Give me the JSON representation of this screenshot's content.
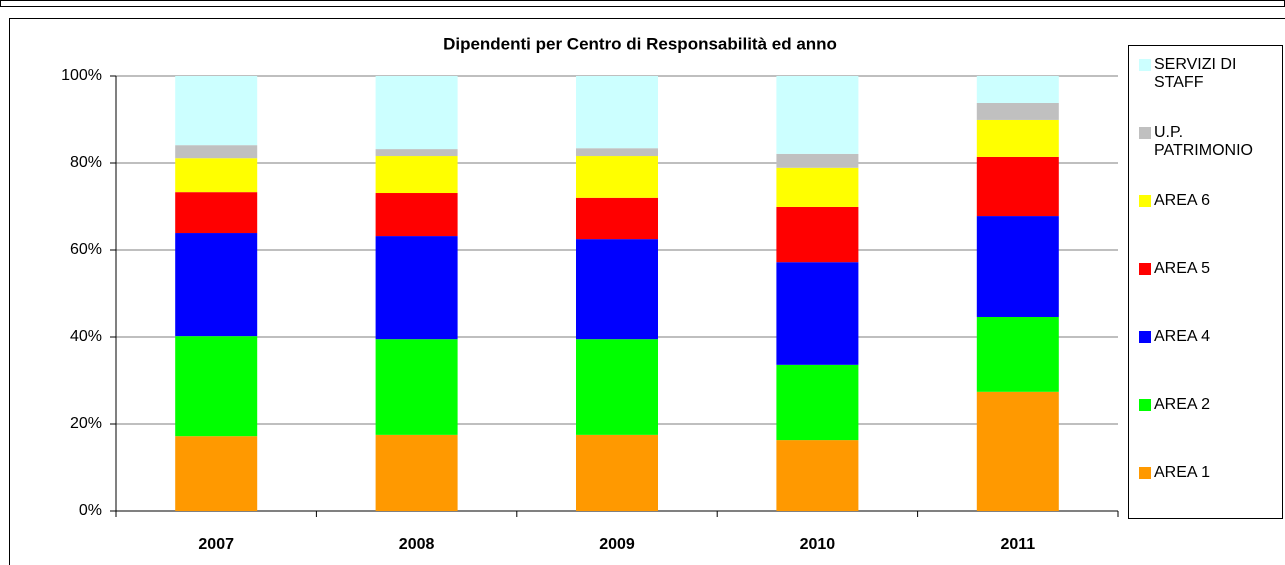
{
  "chart_data": {
    "type": "stacked_bar",
    "title": "Dipendenti per Centro di Responsabilità ed anno",
    "categories": [
      "2007",
      "2008",
      "2009",
      "2010",
      "2011"
    ],
    "series": [
      {
        "name": "AREA 1",
        "color": "#ff9900",
        "values": [
          17.2,
          17.5,
          17.5,
          16.3,
          27.4
        ]
      },
      {
        "name": "AREA 2",
        "color": "#00ff00",
        "values": [
          23.0,
          22.0,
          22.0,
          17.3,
          17.2
        ]
      },
      {
        "name": "AREA 4",
        "color": "#0000ff",
        "values": [
          23.7,
          23.7,
          23.0,
          23.6,
          23.2
        ]
      },
      {
        "name": "AREA 5",
        "color": "#ff0000",
        "values": [
          9.4,
          9.9,
          9.5,
          12.7,
          13.6
        ]
      },
      {
        "name": "AREA 6",
        "color": "#ffff00",
        "values": [
          7.8,
          8.5,
          9.6,
          9.0,
          8.5
        ]
      },
      {
        "name": "U.P. PATRIMONIO",
        "color": "#c0c0c0",
        "values": [
          3.0,
          1.6,
          1.8,
          3.2,
          3.9
        ]
      },
      {
        "name": "SERVIZI DI STAFF",
        "color": "#ccffff",
        "values": [
          15.9,
          16.8,
          16.6,
          17.9,
          6.2
        ]
      }
    ],
    "ylim": [
      0,
      100
    ],
    "yticks": [
      {
        "value": 0,
        "label": "0%"
      },
      {
        "value": 20,
        "label": "20%"
      },
      {
        "value": 40,
        "label": "40%"
      },
      {
        "value": 60,
        "label": "60%"
      },
      {
        "value": 80,
        "label": "80%"
      },
      {
        "value": 100,
        "label": "100%"
      }
    ],
    "grid": true
  }
}
